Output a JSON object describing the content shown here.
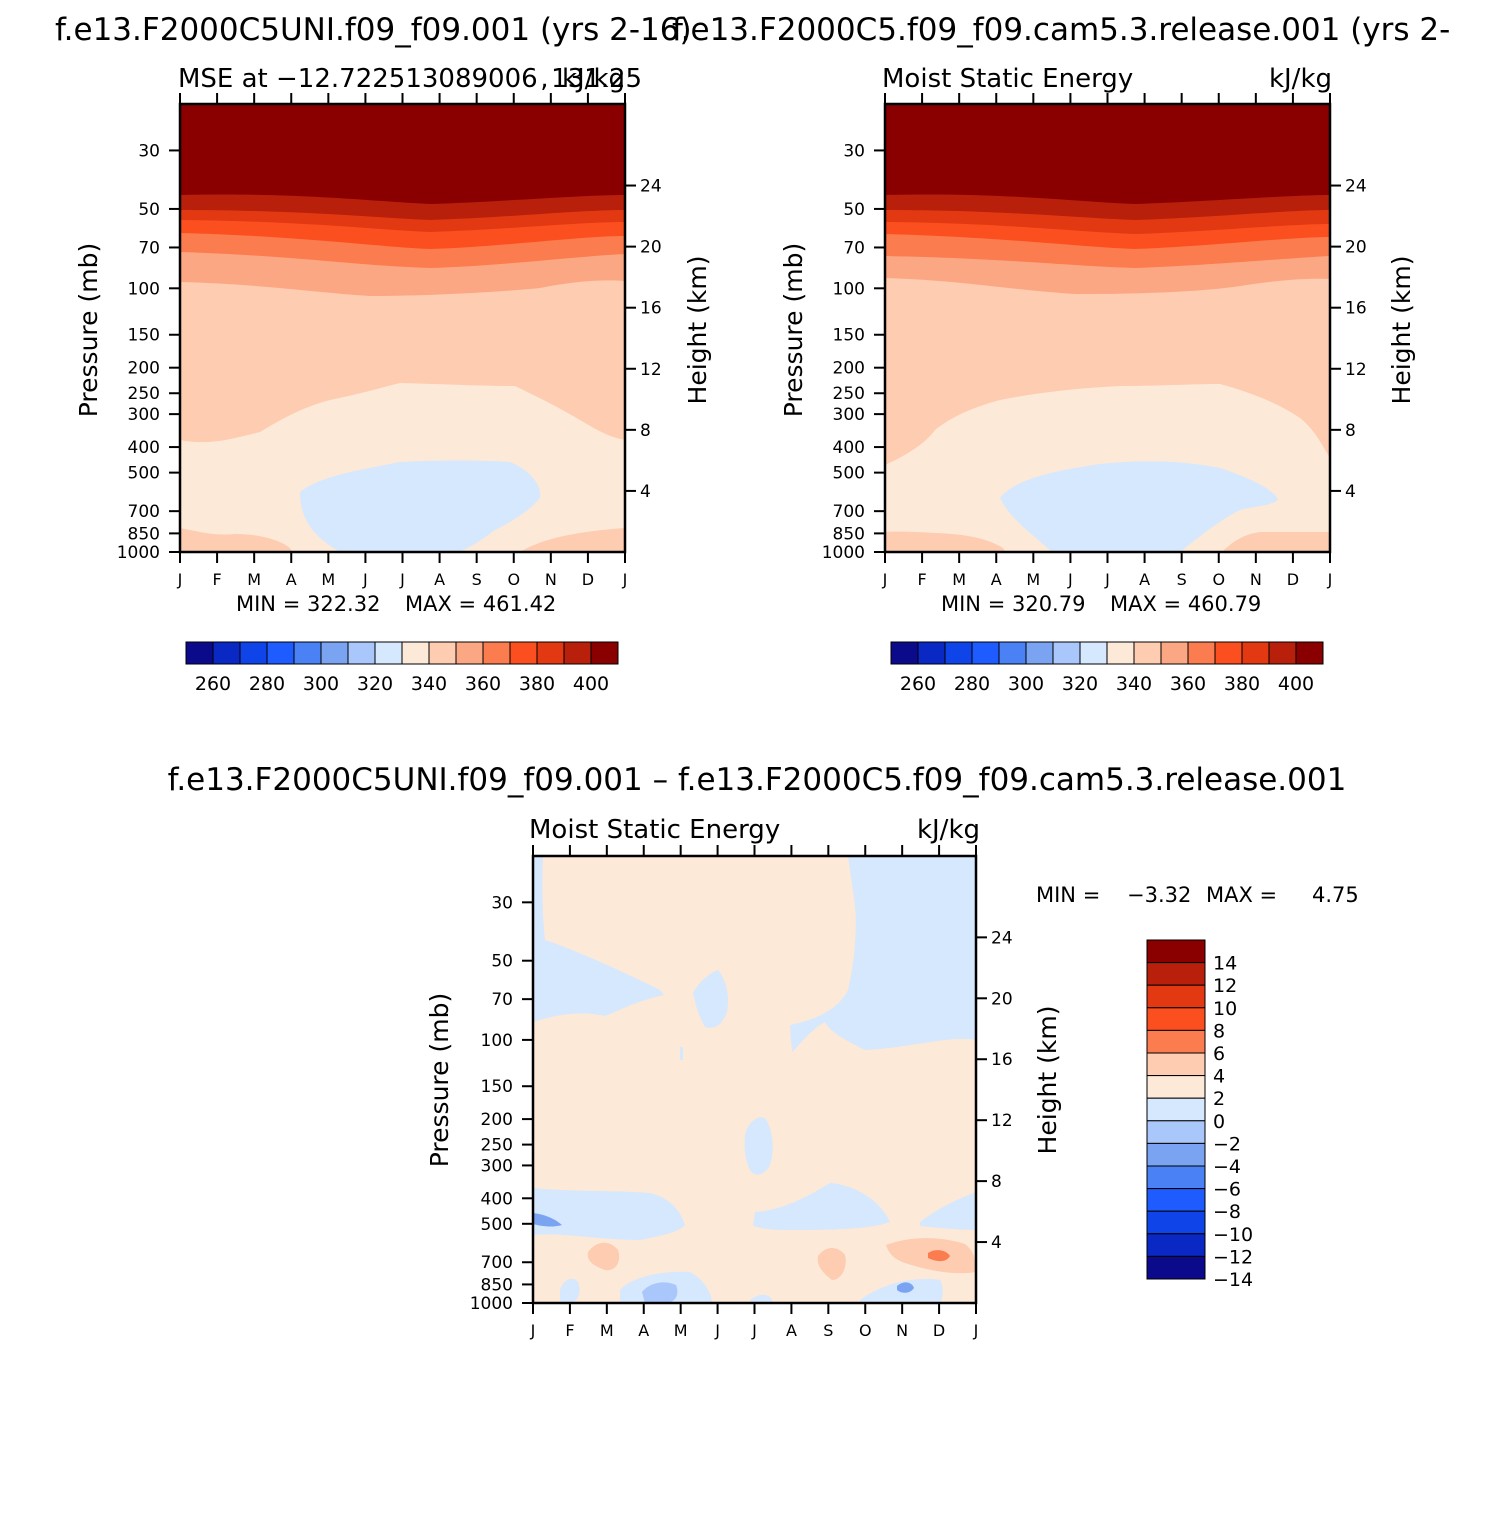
{
  "figure": {
    "top_title_left": "f.e13.F2000C5UNI.f09_f09.001  (yrs 2-16)",
    "top_title_right": "f.e13.F2000C5.f09_f09.cam5.3.release.001  (yrs 2-",
    "diff_title": "f.e13.F2000C5UNI.f09_f09.001 – f.e13.F2000C5.f09_f09.cam5.3.release.001"
  },
  "chart_data": [
    {
      "id": "panel-left",
      "type": "contour",
      "title_left": "MSE at −12.722513089006 , 131.25",
      "title_right": "kJ/kg",
      "xlabel": "",
      "ylabel": "Pressure (mb)",
      "ylabel_right": "Height (km)",
      "x_ticks": [
        "J",
        "F",
        "M",
        "A",
        "M",
        "J",
        "J",
        "A",
        "S",
        "O",
        "N",
        "D",
        "J"
      ],
      "y_ticks": [
        30,
        50,
        70,
        100,
        150,
        200,
        250,
        300,
        400,
        500,
        700,
        850,
        1000
      ],
      "y_ticks_right": [
        24,
        20,
        16,
        12,
        8,
        4
      ],
      "ylim": [
        1000,
        20
      ],
      "yscale": "log",
      "min_text": "MIN = 322.32",
      "max_text": "MAX = 461.42",
      "colorbar": {
        "orientation": "horizontal",
        "levels": [
          250,
          260,
          270,
          280,
          290,
          300,
          310,
          320,
          330,
          340,
          350,
          360,
          370,
          380,
          390,
          400
        ],
        "labels": [
          "260",
          "280",
          "300",
          "320",
          "340",
          "360",
          "380",
          "400"
        ],
        "colors": [
          "#0b0a8a",
          "#0a28c4",
          "#0f45e8",
          "#1e5cff",
          "#4a82f5",
          "#7aa3f2",
          "#aac7fb",
          "#d5e8fd",
          "#fde9d8",
          "#fdccb1",
          "#fba784",
          "#fb7c4e",
          "#fb4f20",
          "#e23912",
          "#b8200b",
          "#8a0000"
        ]
      }
    },
    {
      "id": "panel-right",
      "type": "contour",
      "title_left": "Moist Static Energy",
      "title_right": "kJ/kg",
      "xlabel": "",
      "ylabel": "Pressure (mb)",
      "ylabel_right": "Height (km)",
      "x_ticks": [
        "J",
        "F",
        "M",
        "A",
        "M",
        "J",
        "J",
        "A",
        "S",
        "O",
        "N",
        "D",
        "J"
      ],
      "y_ticks": [
        30,
        50,
        70,
        100,
        150,
        200,
        250,
        300,
        400,
        500,
        700,
        850,
        1000
      ],
      "y_ticks_right": [
        24,
        20,
        16,
        12,
        8,
        4
      ],
      "ylim": [
        1000,
        20
      ],
      "yscale": "log",
      "min_text": "MIN = 320.79",
      "max_text": "MAX = 460.79",
      "colorbar": {
        "orientation": "horizontal",
        "labels": [
          "260",
          "280",
          "300",
          "320",
          "340",
          "360",
          "380",
          "400"
        ]
      }
    },
    {
      "id": "panel-diff",
      "type": "contour",
      "title_left": "Moist Static Energy",
      "title_right": "kJ/kg",
      "xlabel": "",
      "ylabel": "Pressure (mb)",
      "ylabel_right": "Height (km)",
      "x_ticks": [
        "J",
        "F",
        "M",
        "A",
        "M",
        "J",
        "J",
        "A",
        "S",
        "O",
        "N",
        "D",
        "J"
      ],
      "y_ticks": [
        30,
        50,
        70,
        100,
        150,
        200,
        250,
        300,
        400,
        500,
        700,
        850,
        1000
      ],
      "y_ticks_right": [
        24,
        20,
        16,
        12,
        8,
        4
      ],
      "ylim": [
        1000,
        20
      ],
      "yscale": "log",
      "min_label": "MIN =",
      "min_value": "−3.32",
      "max_label": "MAX =",
      "max_value": "4.75",
      "colorbar": {
        "orientation": "vertical",
        "labels": [
          "14",
          "12",
          "10",
          "8",
          "6",
          "4",
          "2",
          "0",
          "−2",
          "−4",
          "−6",
          "−8",
          "−10",
          "−12",
          "−14"
        ],
        "colors": [
          "#8a0000",
          "#b8200b",
          "#e23912",
          "#fb4f20",
          "#fb7c4e",
          "#fdccb1",
          "#fde9d8",
          "#d5e8fd",
          "#aac7fb",
          "#7aa3f2",
          "#4a82f5",
          "#1e5cff",
          "#0f45e8",
          "#0a28c4",
          "#0b0a8a"
        ]
      }
    }
  ]
}
